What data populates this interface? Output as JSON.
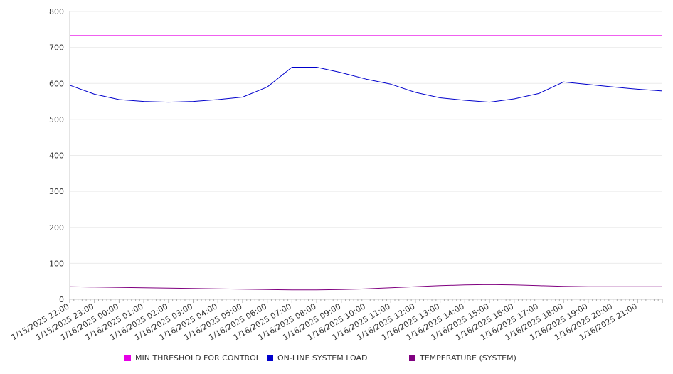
{
  "chart_data": {
    "type": "line",
    "title": "",
    "xlabel": "",
    "ylabel": "",
    "ylim": [
      0,
      800
    ],
    "y_ticks": [
      "0",
      "100",
      "200",
      "300",
      "400",
      "500",
      "600",
      "700",
      "800"
    ],
    "x_tick_labels": [
      "1/15/2025 22:00",
      "1/15/2025 23:00",
      "1/16/2025 00:00",
      "1/16/2025 01:00",
      "1/16/2025 02:00",
      "1/16/2025 03:00",
      "1/16/2025 04:00",
      "1/16/2025 05:00",
      "1/16/2025 06:00",
      "1/16/2025 07:00",
      "1/16/2025 08:00",
      "1/16/2025 09:00",
      "1/16/2025 10:00",
      "1/16/2025 11:00",
      "1/16/2025 12:00",
      "1/16/2025 13:00",
      "1/16/2025 14:00",
      "1/16/2025 15:00",
      "1/16/2025 16:00",
      "1/16/2025 17:00",
      "1/16/2025 18:00",
      "1/16/2025 19:00",
      "1/16/2025 20:00",
      "1/16/2025 21:00"
    ],
    "grid": true,
    "legend_position": "bottom",
    "series": [
      {
        "name": "MIN THRESHOLD FOR CONTROL",
        "color": "#e600e6",
        "values": [
          733,
          733,
          733,
          733,
          733,
          733,
          733,
          733,
          733,
          733,
          733,
          733,
          733,
          733,
          733,
          733,
          733,
          733,
          733,
          733,
          733,
          733,
          733,
          733,
          733
        ]
      },
      {
        "name": "ON-LINE SYSTEM LOAD",
        "color": "#0000cc",
        "values": [
          595,
          570,
          555,
          550,
          548,
          550,
          555,
          562,
          590,
          645,
          645,
          630,
          612,
          598,
          575,
          560,
          553,
          548,
          557,
          572,
          604,
          597,
          590,
          584,
          579
        ]
      },
      {
        "name": "TEMPERATURE (SYSTEM)",
        "color": "#800080",
        "values": [
          35,
          34,
          33,
          32,
          31,
          30,
          29,
          28,
          27,
          26,
          26,
          27,
          29,
          32,
          35,
          38,
          40,
          41,
          40,
          38,
          36,
          35,
          35,
          35,
          35
        ]
      }
    ]
  }
}
